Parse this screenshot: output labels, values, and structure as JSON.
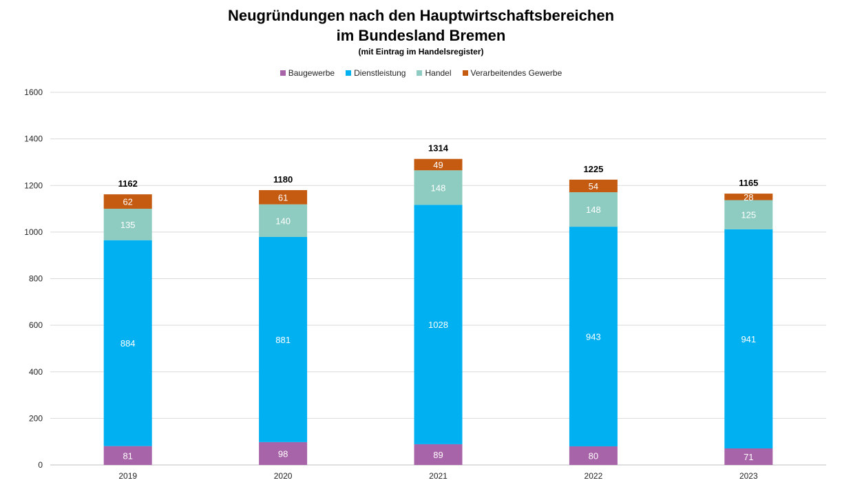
{
  "chart_data": {
    "type": "bar",
    "stacked": true,
    "title": "Neugründungen nach den Hauptwirtschaftsbereichen",
    "title_line2": "im Bundesland Bremen",
    "subtitle": "(mit Eintrag im Handelsregister)",
    "xlabel": "",
    "ylabel": "",
    "ylim": [
      0,
      1600
    ],
    "yticks": [
      0,
      200,
      400,
      600,
      800,
      1000,
      1200,
      1400,
      1600
    ],
    "grid": true,
    "legend_position": "top",
    "categories": [
      "2019",
      "2020",
      "2021",
      "2022",
      "2023"
    ],
    "series": [
      {
        "name": "Baugewerbe",
        "color": "#A864A8",
        "label_color": "#ffffff",
        "values": [
          81,
          98,
          89,
          80,
          71
        ]
      },
      {
        "name": "Dienstleistung",
        "color": "#00B0F0",
        "label_color": "#ffffff",
        "values": [
          884,
          881,
          1028,
          943,
          941
        ]
      },
      {
        "name": "Handel",
        "color": "#8ECCC1",
        "label_color": "#ffffff",
        "values": [
          135,
          140,
          148,
          148,
          125
        ]
      },
      {
        "name": "Verarbeitendes Gewerbe",
        "color": "#C55A11",
        "label_color": "#ffffff",
        "values": [
          62,
          61,
          49,
          54,
          28
        ]
      }
    ],
    "totals": [
      1162,
      1180,
      1314,
      1225,
      1165
    ]
  }
}
